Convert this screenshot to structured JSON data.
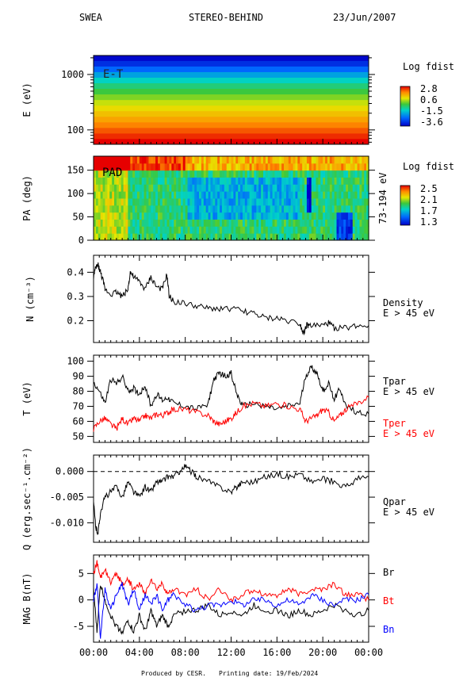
{
  "header": {
    "instrument": "SWEA",
    "mission": "STEREO-BEHIND",
    "date": "23/Jun/2007"
  },
  "footer": {
    "credit": "Produced by CESR.",
    "print_date": "Printing date: 19/Feb/2024"
  },
  "time_axis": {
    "labels": [
      "00:00",
      "04:00",
      "08:00",
      "12:00",
      "16:00",
      "20:00",
      "00:00"
    ],
    "range_hours": [
      0,
      24
    ]
  },
  "colors": {
    "trace_black": "#000000",
    "trace_red": "#ff0000",
    "trace_blue": "#0000ff"
  },
  "chart_data": [
    {
      "type": "heatmap",
      "id": "energy-time",
      "label": "E-T",
      "ylabel": "E (eV)",
      "yscale": "log",
      "ylim": [
        55,
        2200
      ],
      "ytick_labels": [
        "100",
        "1000"
      ],
      "ytick_values": [
        100,
        1000
      ],
      "colorbar": {
        "title": "Log fdist",
        "labels": [
          "2.8",
          "0.6",
          "-1.5",
          "-3.6"
        ],
        "range": [
          -3.6,
          2.8
        ]
      },
      "bands": {
        "energy_eV": [
          62,
          78,
          98,
          124,
          156,
          197,
          248,
          313,
          395,
          498,
          628,
          792,
          998,
          1260,
          1590,
          2000
        ],
        "log_fdist": [
          2.8,
          2.5,
          2.2,
          1.9,
          1.6,
          1.3,
          1.0,
          0.7,
          0.3,
          -0.1,
          -0.5,
          -1.0,
          -1.6,
          -2.3,
          -3.0,
          -3.5
        ]
      }
    },
    {
      "type": "heatmap",
      "id": "pitch-angle",
      "label": "PAD",
      "ylabel": "PA (deg)",
      "ylim": [
        0,
        180
      ],
      "ytick_labels": [
        "0",
        "50",
        "100",
        "150"
      ],
      "ytick_values": [
        0,
        50,
        100,
        150
      ],
      "right_label": "73-194 eV",
      "colorbar": {
        "title": "Log fdist",
        "labels": [
          "2.5",
          "2.1",
          "1.7",
          "1.3"
        ],
        "range": [
          1.3,
          2.5
        ]
      }
    },
    {
      "type": "line",
      "id": "density",
      "ylabel": "N (cm⁻³)",
      "ylim": [
        0.11,
        0.47
      ],
      "ytick_labels": [
        "0.2",
        "0.3",
        "0.4"
      ],
      "ytick_values": [
        0.2,
        0.3,
        0.4
      ],
      "series": [
        {
          "name": "Density",
          "sublabel": "E > 45 eV",
          "color": "#000000",
          "x": [
            0,
            0.2,
            0.4,
            0.6,
            0.8,
            1,
            1.5,
            2,
            2.5,
            3,
            3.2,
            3.5,
            4,
            4.5,
            5,
            5.5,
            6,
            6.4,
            6.6,
            7,
            8,
            9,
            10,
            11,
            12,
            13,
            14,
            15,
            16,
            17,
            18,
            18.3,
            18.6,
            19,
            20,
            20.5,
            21,
            22,
            23,
            24
          ],
          "values": [
            0.38,
            0.42,
            0.43,
            0.4,
            0.37,
            0.33,
            0.31,
            0.32,
            0.3,
            0.33,
            0.4,
            0.38,
            0.36,
            0.33,
            0.38,
            0.34,
            0.33,
            0.39,
            0.3,
            0.28,
            0.27,
            0.26,
            0.25,
            0.25,
            0.25,
            0.24,
            0.23,
            0.21,
            0.21,
            0.2,
            0.19,
            0.15,
            0.18,
            0.18,
            0.18,
            0.19,
            0.17,
            0.17,
            0.18,
            0.18
          ]
        }
      ]
    },
    {
      "type": "line",
      "id": "temperature",
      "ylabel": "T (eV)",
      "ylim": [
        46,
        104
      ],
      "ytick_labels": [
        "50",
        "60",
        "70",
        "80",
        "90",
        "100"
      ],
      "ytick_values": [
        50,
        60,
        70,
        80,
        90,
        100
      ],
      "series": [
        {
          "name": "Tpar",
          "sublabel": "E > 45 eV",
          "color": "#000000",
          "x": [
            0,
            0.5,
            1,
            1.5,
            2,
            2.5,
            3,
            3.5,
            4,
            4.5,
            5,
            5.5,
            6,
            6.5,
            7,
            8,
            9,
            10,
            10.5,
            11,
            11.5,
            12,
            12.5,
            13,
            14,
            15,
            16,
            17,
            18,
            18.5,
            19,
            19.5,
            20,
            20.5,
            21,
            21.5,
            22,
            23,
            24
          ],
          "values": [
            86,
            80,
            72,
            88,
            85,
            90,
            80,
            82,
            78,
            84,
            70,
            78,
            74,
            76,
            72,
            70,
            68,
            72,
            88,
            92,
            90,
            92,
            78,
            70,
            72,
            70,
            68,
            70,
            72,
            90,
            96,
            92,
            80,
            85,
            75,
            82,
            70,
            66,
            65
          ]
        },
        {
          "name": "Tper",
          "sublabel": "E > 45 eV",
          "color": "#ff0000",
          "x": [
            0,
            0.5,
            1,
            1.5,
            2,
            2.5,
            3,
            3.5,
            4,
            4.5,
            5,
            5.5,
            6,
            6.5,
            7,
            8,
            9,
            10,
            10.5,
            11,
            11.5,
            12,
            12.5,
            13,
            14,
            15,
            16,
            17,
            18,
            18.5,
            19,
            19.5,
            20,
            20.5,
            21,
            21.5,
            22,
            23,
            24
          ],
          "values": [
            55,
            60,
            62,
            58,
            55,
            62,
            58,
            62,
            60,
            64,
            62,
            65,
            64,
            66,
            68,
            68,
            66,
            64,
            60,
            58,
            60,
            62,
            66,
            70,
            72,
            70,
            72,
            70,
            68,
            60,
            62,
            64,
            68,
            66,
            60,
            64,
            68,
            72,
            76
          ]
        }
      ]
    },
    {
      "type": "line",
      "id": "heat-flux",
      "ylabel": "Q (erg.sec⁻¹.cm⁻²)",
      "ylim": [
        -0.0138,
        0.0032
      ],
      "ytick_labels": [
        "-0.010",
        "-0.005",
        "0.000"
      ],
      "ytick_values": [
        -0.01,
        -0.005,
        0
      ],
      "reference_line": 0,
      "series": [
        {
          "name": "Qpar",
          "sublabel": "E > 45 eV",
          "color": "#000000",
          "x": [
            0,
            0.2,
            0.4,
            0.6,
            1,
            1.5,
            2,
            2.5,
            3,
            3.5,
            4,
            4.5,
            5,
            5.5,
            6,
            6.5,
            7,
            7.5,
            8,
            8.5,
            9,
            10,
            11,
            12,
            12.5,
            13,
            14,
            15,
            16,
            17,
            18,
            19,
            20,
            21,
            22,
            23,
            24
          ],
          "values": [
            -0.006,
            -0.011,
            -0.012,
            -0.008,
            -0.005,
            -0.004,
            -0.003,
            -0.005,
            -0.002,
            -0.004,
            -0.005,
            -0.003,
            -0.004,
            -0.002,
            -0.002,
            -0.001,
            -0.001,
            0,
            0.001,
            0,
            -0.001,
            -0.002,
            -0.003,
            -0.004,
            -0.003,
            -0.002,
            -0.002,
            -0.001,
            -0.0005,
            -0.001,
            -0.0005,
            -0.002,
            -0.0015,
            -0.002,
            -0.003,
            -0.0015,
            -0.001
          ]
        }
      ]
    },
    {
      "type": "line",
      "id": "magnetic-field",
      "ylabel": "MAG B(nT)",
      "ylim": [
        -8,
        8.5
      ],
      "ytick_labels": [
        "-5",
        "0",
        "5"
      ],
      "ytick_values": [
        -5,
        0,
        5
      ],
      "series": [
        {
          "name": "Br",
          "color": "#000000",
          "x": [
            0,
            0.3,
            0.6,
            1,
            1.5,
            2,
            2.5,
            3,
            3.5,
            4,
            4.5,
            5,
            5.5,
            6,
            6.5,
            7,
            8,
            9,
            10,
            11,
            12,
            13,
            14,
            15,
            16,
            17,
            18,
            19,
            20,
            21,
            22,
            23,
            24
          ],
          "values": [
            2,
            -6,
            3,
            0,
            -3,
            -5,
            -6,
            -4,
            -6,
            -3,
            -6,
            -2,
            -5,
            -3,
            -5,
            -3,
            -2,
            -2,
            -1,
            -3,
            -2,
            -3,
            -1,
            -2,
            -2,
            -3,
            -2,
            -3,
            -2,
            -1,
            -2,
            -3,
            -2
          ]
        },
        {
          "name": "Bt",
          "color": "#ff0000",
          "x": [
            0,
            0.3,
            0.6,
            1,
            1.5,
            2,
            2.5,
            3,
            3.5,
            4,
            4.5,
            5,
            5.5,
            6,
            6.5,
            7,
            8,
            9,
            10,
            11,
            12,
            13,
            14,
            15,
            16,
            17,
            18,
            19,
            20,
            21,
            22,
            23,
            24
          ],
          "values": [
            5,
            7,
            4,
            6,
            3,
            5,
            3,
            4,
            2,
            3,
            1,
            4,
            2,
            3,
            1,
            2,
            1,
            2,
            0,
            2,
            0,
            1,
            2,
            1,
            1,
            2,
            1,
            2,
            2,
            3,
            1,
            1,
            0
          ]
        },
        {
          "name": "Bn",
          "color": "#0000ff",
          "x": [
            0,
            0.3,
            0.6,
            1,
            1.5,
            2,
            2.5,
            3,
            3.5,
            4,
            4.5,
            5,
            5.5,
            6,
            6.5,
            7,
            8,
            9,
            10,
            11,
            12,
            13,
            14,
            15,
            16,
            17,
            18,
            19,
            20,
            21,
            22,
            23,
            24
          ],
          "values": [
            0,
            3,
            -7,
            2,
            -2,
            1,
            3,
            -1,
            2,
            -2,
            1,
            -1,
            1,
            -2,
            0,
            1,
            -1,
            -2,
            -1,
            -1,
            0,
            -1,
            0,
            0,
            -1,
            0,
            -1,
            1,
            0,
            -1,
            0,
            0,
            1
          ]
        }
      ]
    }
  ]
}
